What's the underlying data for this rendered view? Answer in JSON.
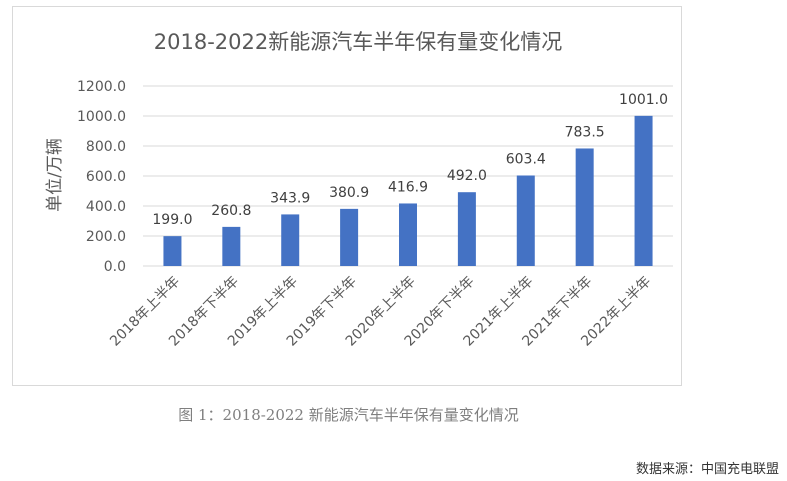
{
  "chart_data": {
    "type": "bar",
    "title": "2018-2022新能源汽车半年保有量变化情况",
    "xlabel": "",
    "ylabel": "单位/万辆",
    "ylim": [
      0,
      1200
    ],
    "yticks": [
      "0.0",
      "200.0",
      "400.0",
      "600.0",
      "800.0",
      "1000.0",
      "1200.0"
    ],
    "categories": [
      "2018年上半年",
      "2018年下半年",
      "2019年上半年",
      "2019年下半年",
      "2020年上半年",
      "2020年下半年",
      "2021年上半年",
      "2021年下半年",
      "2022年上半年"
    ],
    "values": [
      199.0,
      260.8,
      343.9,
      380.9,
      416.9,
      492.0,
      603.4,
      783.5,
      1001.0
    ],
    "data_labels": [
      "199.0",
      "260.8",
      "343.9",
      "380.9",
      "416.9",
      "492.0",
      "603.4",
      "783.5",
      "1001.0"
    ],
    "grid": true,
    "bar_color": "#4472c4",
    "grid_color": "#d9d9d9"
  },
  "caption": "图 1：2018-2022 新能源汽车半年保有量变化情况",
  "source": "数据来源：中国充电联盟"
}
